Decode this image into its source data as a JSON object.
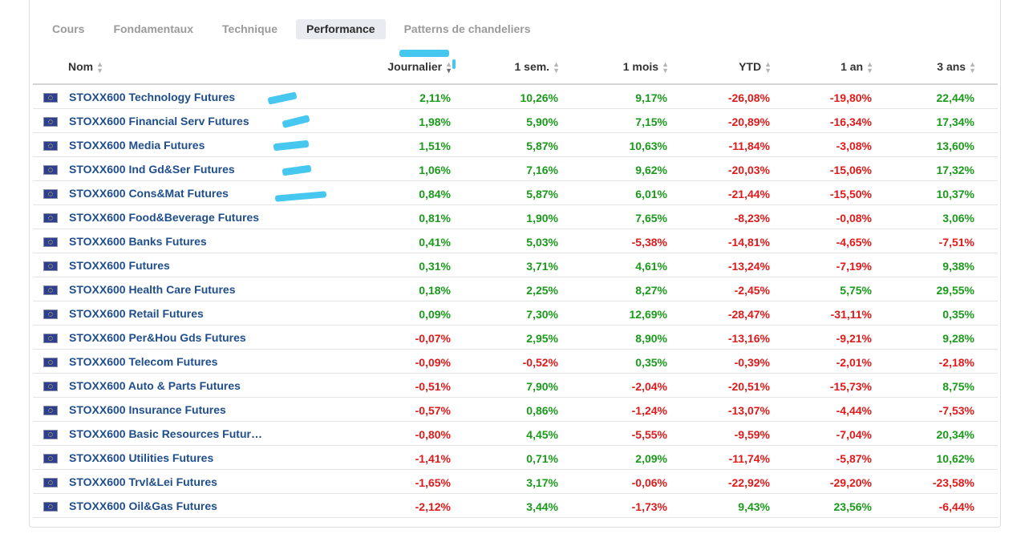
{
  "tabs": [
    "Cours",
    "Fondamentaux",
    "Technique",
    "Performance",
    "Patterns de chandeliers"
  ],
  "active_tab": "Performance",
  "columns": [
    {
      "key": "name",
      "label": "Nom"
    },
    {
      "key": "d",
      "label": "Journalier"
    },
    {
      "key": "w",
      "label": "1 sem."
    },
    {
      "key": "m",
      "label": "1 mois"
    },
    {
      "key": "ytd",
      "label": "YTD"
    },
    {
      "key": "y1",
      "label": "1 an"
    },
    {
      "key": "y3",
      "label": "3 ans"
    }
  ],
  "sorted_column": "Journalier",
  "colors": {
    "positive": "#1a9a1a",
    "negative": "#e01a1a",
    "link": "#1f4e8c",
    "highlight": "#45c7f0"
  },
  "rows": [
    {
      "name": "STOXX600 Technology Futures",
      "d": "2,11%",
      "w": "10,26%",
      "m": "9,17%",
      "ytd": "-26,08%",
      "y1": "-19,80%",
      "y3": "22,44%"
    },
    {
      "name": "STOXX600 Financial Serv Futures",
      "d": "1,98%",
      "w": "5,90%",
      "m": "7,15%",
      "ytd": "-20,89%",
      "y1": "-16,34%",
      "y3": "17,34%"
    },
    {
      "name": "STOXX600 Media Futures",
      "d": "1,51%",
      "w": "5,87%",
      "m": "10,63%",
      "ytd": "-11,84%",
      "y1": "-3,08%",
      "y3": "13,60%"
    },
    {
      "name": "STOXX600 Ind Gd&Ser Futures",
      "d": "1,06%",
      "w": "7,16%",
      "m": "9,62%",
      "ytd": "-20,03%",
      "y1": "-15,06%",
      "y3": "17,32%"
    },
    {
      "name": "STOXX600 Cons&Mat Futures",
      "d": "0,84%",
      "w": "5,87%",
      "m": "6,01%",
      "ytd": "-21,44%",
      "y1": "-15,50%",
      "y3": "10,37%"
    },
    {
      "name": "STOXX600 Food&Beverage Futures",
      "d": "0,81%",
      "w": "1,90%",
      "m": "7,65%",
      "ytd": "-8,23%",
      "y1": "-0,08%",
      "y3": "3,06%"
    },
    {
      "name": "STOXX600 Banks Futures",
      "d": "0,41%",
      "w": "5,03%",
      "m": "-5,38%",
      "ytd": "-14,81%",
      "y1": "-4,65%",
      "y3": "-7,51%"
    },
    {
      "name": "STOXX600 Futures",
      "d": "0,31%",
      "w": "3,71%",
      "m": "4,61%",
      "ytd": "-13,24%",
      "y1": "-7,19%",
      "y3": "9,38%"
    },
    {
      "name": "STOXX600 Health Care Futures",
      "d": "0,18%",
      "w": "2,25%",
      "m": "8,27%",
      "ytd": "-2,45%",
      "y1": "5,75%",
      "y3": "29,55%"
    },
    {
      "name": "STOXX600 Retail Futures",
      "d": "0,09%",
      "w": "7,30%",
      "m": "12,69%",
      "ytd": "-28,47%",
      "y1": "-31,11%",
      "y3": "0,35%"
    },
    {
      "name": "STOXX600 Per&Hou Gds Futures",
      "d": "-0,07%",
      "w": "2,95%",
      "m": "8,90%",
      "ytd": "-13,16%",
      "y1": "-9,21%",
      "y3": "9,28%"
    },
    {
      "name": "STOXX600 Telecom Futures",
      "d": "-0,09%",
      "w": "-0,52%",
      "m": "0,35%",
      "ytd": "-0,39%",
      "y1": "-2,01%",
      "y3": "-2,18%"
    },
    {
      "name": "STOXX600 Auto & Parts Futures",
      "d": "-0,51%",
      "w": "7,90%",
      "m": "-2,04%",
      "ytd": "-20,51%",
      "y1": "-15,73%",
      "y3": "8,75%"
    },
    {
      "name": "STOXX600 Insurance Futures",
      "d": "-0,57%",
      "w": "0,86%",
      "m": "-1,24%",
      "ytd": "-13,07%",
      "y1": "-4,44%",
      "y3": "-7,53%"
    },
    {
      "name": "STOXX600 Basic Resources Futur…",
      "d": "-0,80%",
      "w": "4,45%",
      "m": "-5,55%",
      "ytd": "-9,59%",
      "y1": "-7,04%",
      "y3": "20,34%"
    },
    {
      "name": "STOXX600 Utilities Futures",
      "d": "-1,41%",
      "w": "0,71%",
      "m": "2,09%",
      "ytd": "-11,74%",
      "y1": "-5,87%",
      "y3": "10,62%"
    },
    {
      "name": "STOXX600 Trvl&Lei Futures",
      "d": "-1,65%",
      "w": "3,17%",
      "m": "-0,06%",
      "ytd": "-22,92%",
      "y1": "-29,20%",
      "y3": "-23,58%"
    },
    {
      "name": "STOXX600 Oil&Gas Futures",
      "d": "-2,12%",
      "w": "3,44%",
      "m": "-1,73%",
      "ytd": "9,43%",
      "y1": "23,56%",
      "y3": "-6,44%"
    }
  ]
}
